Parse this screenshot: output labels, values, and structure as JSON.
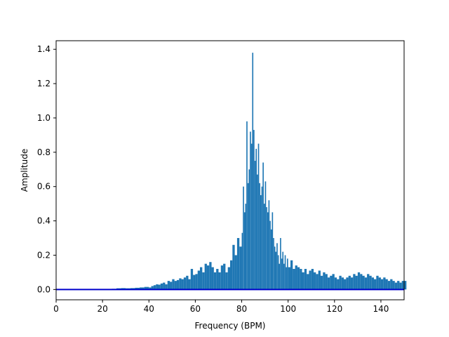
{
  "chart_data": {
    "type": "bar",
    "title": "",
    "xlabel": "Frequency (BPM)",
    "ylabel": "Amplitude",
    "xlim": [
      0,
      150
    ],
    "ylim": [
      -0.06,
      1.45
    ],
    "xticks": [
      0,
      20,
      40,
      60,
      80,
      100,
      120,
      140
    ],
    "yticks": [
      0.0,
      0.2,
      0.4,
      0.6,
      0.8,
      1.0,
      1.2,
      1.4
    ],
    "xtick_labels": [
      "0",
      "20",
      "40",
      "60",
      "80",
      "100",
      "120",
      "140"
    ],
    "ytick_labels": [
      "0.0",
      "0.2",
      "0.4",
      "0.6",
      "0.8",
      "1.0",
      "1.2",
      "1.4"
    ],
    "grid": false,
    "legend": "none",
    "bar_color": "#1f77b4",
    "baseline_color": "#0000cc",
    "series": [
      {
        "x": [
          0,
          2,
          4,
          6,
          8,
          10,
          12,
          14,
          16,
          18,
          20,
          22,
          24,
          26,
          28,
          30,
          32,
          34,
          36,
          38,
          40,
          41,
          42,
          43,
          44,
          45,
          46,
          47,
          48,
          49,
          50,
          51,
          52,
          53,
          54,
          55,
          56,
          57,
          58,
          59,
          60,
          61,
          62,
          63,
          64,
          65,
          66,
          67,
          68,
          69,
          70,
          71,
          72,
          73,
          74,
          75,
          76,
          77,
          78,
          79,
          80,
          80.5,
          81,
          81.5,
          82,
          82.5,
          83,
          83.5,
          84,
          84.5,
          85,
          85.5,
          86,
          86.5,
          87,
          87.5,
          88,
          88.5,
          89,
          89.5,
          90,
          90.5,
          91,
          91.5,
          92,
          92.5,
          93,
          93.5,
          94,
          94.5,
          95,
          95.5,
          96,
          96.5,
          97,
          97.5,
          98,
          98.5,
          99,
          99.5,
          100,
          101,
          102,
          103,
          104,
          105,
          106,
          107,
          108,
          109,
          110,
          111,
          112,
          113,
          114,
          115,
          116,
          117,
          118,
          119,
          120,
          121,
          122,
          123,
          124,
          125,
          126,
          127,
          128,
          129,
          130,
          131,
          132,
          133,
          134,
          135,
          136,
          137,
          138,
          139,
          140,
          141,
          142,
          143,
          144,
          145,
          146,
          147,
          148,
          149,
          150
        ],
        "values": [
          0.0,
          0.0,
          0.0,
          0.0,
          0.0,
          0.0,
          0.0,
          0.0,
          0.0,
          0.0,
          0.0,
          0.0,
          0.004,
          0.007,
          0.008,
          0.007,
          0.008,
          0.01,
          0.012,
          0.015,
          0.012,
          0.02,
          0.025,
          0.03,
          0.028,
          0.035,
          0.04,
          0.03,
          0.05,
          0.045,
          0.06,
          0.05,
          0.055,
          0.065,
          0.06,
          0.07,
          0.08,
          0.06,
          0.12,
          0.085,
          0.09,
          0.11,
          0.13,
          0.1,
          0.15,
          0.14,
          0.16,
          0.13,
          0.1,
          0.12,
          0.1,
          0.14,
          0.15,
          0.1,
          0.13,
          0.17,
          0.26,
          0.2,
          0.3,
          0.25,
          0.33,
          0.6,
          0.45,
          0.5,
          0.98,
          0.62,
          0.7,
          0.92,
          0.85,
          1.38,
          0.93,
          0.75,
          0.82,
          0.67,
          0.85,
          0.62,
          0.55,
          0.6,
          0.74,
          0.5,
          0.63,
          0.48,
          0.45,
          0.52,
          0.4,
          0.35,
          0.45,
          0.3,
          0.25,
          0.22,
          0.27,
          0.2,
          0.15,
          0.3,
          0.18,
          0.22,
          0.15,
          0.2,
          0.13,
          0.18,
          0.13,
          0.17,
          0.12,
          0.14,
          0.13,
          0.12,
          0.1,
          0.12,
          0.09,
          0.11,
          0.12,
          0.1,
          0.09,
          0.11,
          0.08,
          0.1,
          0.09,
          0.07,
          0.08,
          0.09,
          0.07,
          0.06,
          0.08,
          0.07,
          0.06,
          0.07,
          0.08,
          0.07,
          0.09,
          0.08,
          0.1,
          0.09,
          0.08,
          0.07,
          0.09,
          0.08,
          0.07,
          0.06,
          0.08,
          0.07,
          0.06,
          0.07,
          0.06,
          0.05,
          0.06,
          0.05,
          0.04,
          0.05,
          0.04,
          0.05,
          0.05
        ]
      }
    ]
  }
}
